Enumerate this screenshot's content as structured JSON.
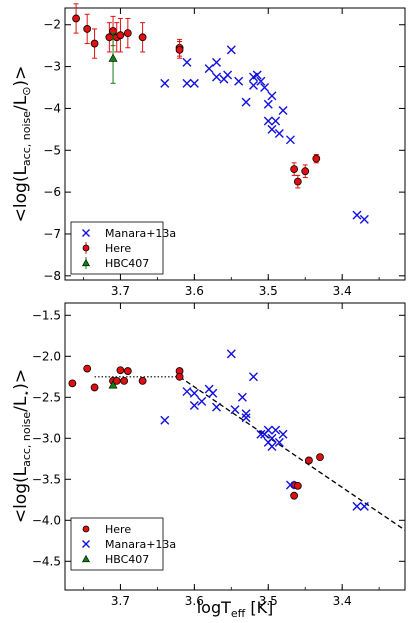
{
  "chart_data": [
    {
      "type": "scatter",
      "panel": "top",
      "ylabel_main": "<log(L",
      "ylabel_sub": "acc, noise",
      "ylabel_mid": "/L",
      "ylabel_symbol": "⊙",
      "ylabel_end": ")>",
      "x_reversed": true,
      "xlim": [
        3.775,
        3.315
      ],
      "ylim": [
        -8.1,
        -1.6
      ],
      "xticks": [
        3.7,
        3.6,
        3.5,
        3.4
      ],
      "yticks": [
        -2,
        -3,
        -4,
        -5,
        -6,
        -7,
        -8
      ],
      "legend_position": "lower left",
      "series": [
        {
          "name": "Manara+13a",
          "marker": "x",
          "color": "#1010e0",
          "x": [
            3.64,
            3.61,
            3.58,
            3.57,
            3.56,
            3.55,
            3.54,
            3.53,
            3.52,
            3.515,
            3.51,
            3.505,
            3.5,
            3.495,
            3.49,
            3.485,
            3.48,
            3.47,
            3.38,
            3.37,
            3.6,
            3.61,
            3.57,
            3.555,
            3.52,
            3.5,
            3.495
          ],
          "y": [
            -3.4,
            -2.9,
            -3.05,
            -3.25,
            -3.3,
            -2.6,
            -3.35,
            -3.85,
            -3.25,
            -3.2,
            -3.35,
            -3.5,
            -4.3,
            -4.5,
            -4.3,
            -4.6,
            -4.05,
            -4.75,
            -6.55,
            -6.65,
            -3.4,
            -3.4,
            -2.9,
            -3.2,
            -3.45,
            -3.9,
            -3.7
          ]
        },
        {
          "name": "Here",
          "marker": "o",
          "color": "#e01010",
          "x": [
            3.76,
            3.745,
            3.735,
            3.715,
            3.71,
            3.705,
            3.7,
            3.69,
            3.67,
            3.62,
            3.62,
            3.465,
            3.46,
            3.45,
            3.435
          ],
          "y": [
            -1.85,
            -2.1,
            -2.45,
            -2.3,
            -2.15,
            -2.3,
            -2.25,
            -2.2,
            -2.3,
            -2.55,
            -2.6,
            -5.45,
            -5.75,
            -5.5,
            -5.2
          ],
          "yerr": [
            0.35,
            0.35,
            0.35,
            0.35,
            0.35,
            0.35,
            0.4,
            0.35,
            0.35,
            0.2,
            0.2,
            0.15,
            0.15,
            0.15,
            0.1
          ]
        },
        {
          "name": "HBC407",
          "marker": "^",
          "color": "#108010",
          "x": [
            3.71
          ],
          "y": [
            -2.8
          ],
          "yerr": [
            0.6
          ]
        }
      ]
    },
    {
      "type": "scatter",
      "panel": "bottom",
      "ylabel_main": "<log(L",
      "ylabel_sub": "acc, noise",
      "ylabel_mid": "/L",
      "ylabel_symbol": "⋆",
      "ylabel_end": ")>",
      "xlabel_main": "logT",
      "xlabel_sub": "eff",
      "xlabel_end": " [K]",
      "x_reversed": true,
      "xlim": [
        3.775,
        3.315
      ],
      "ylim": [
        -4.85,
        -1.35
      ],
      "xticks": [
        3.7,
        3.6,
        3.5,
        3.4
      ],
      "yticks": [
        -1.5,
        -2.0,
        -2.5,
        -3.0,
        -3.5,
        -4.0,
        -4.5
      ],
      "legend_position": "lower left",
      "fit_line_dotted": {
        "x": [
          3.735,
          3.62
        ],
        "y": [
          -2.25,
          -2.25
        ]
      },
      "fit_line_dashed": {
        "x": [
          3.62,
          3.315
        ],
        "y": [
          -2.25,
          -4.12
        ]
      },
      "series": [
        {
          "name": "Here",
          "marker": "o",
          "color": "#e01010",
          "x": [
            3.765,
            3.745,
            3.735,
            3.71,
            3.705,
            3.7,
            3.695,
            3.69,
            3.67,
            3.62,
            3.62,
            3.465,
            3.465,
            3.46,
            3.445,
            3.43
          ],
          "y": [
            -2.33,
            -2.15,
            -2.38,
            -2.3,
            -2.3,
            -2.17,
            -2.3,
            -2.18,
            -2.3,
            -2.18,
            -2.25,
            -3.57,
            -3.7,
            -3.58,
            -3.27,
            -3.23
          ]
        },
        {
          "name": "Manara+13a",
          "marker": "x",
          "color": "#1010e0",
          "x": [
            3.64,
            3.6,
            3.6,
            3.58,
            3.575,
            3.57,
            3.55,
            3.535,
            3.53,
            3.53,
            3.52,
            3.51,
            3.5,
            3.5,
            3.495,
            3.49,
            3.485,
            3.48,
            3.47,
            3.38,
            3.37,
            3.61,
            3.59,
            3.545,
            3.505,
            3.495
          ],
          "y": [
            -2.78,
            -2.45,
            -2.6,
            -2.4,
            -2.45,
            -2.62,
            -1.97,
            -2.5,
            -2.75,
            -2.7,
            -2.25,
            -2.95,
            -2.9,
            -3.05,
            -3.0,
            -2.9,
            -3.05,
            -2.95,
            -3.57,
            -3.83,
            -3.83,
            -2.43,
            -2.55,
            -2.65,
            -2.95,
            -3.1
          ]
        },
        {
          "name": "HBC407",
          "marker": "^",
          "color": "#108010",
          "x": [
            3.71
          ],
          "y": [
            -2.35
          ]
        }
      ]
    }
  ]
}
